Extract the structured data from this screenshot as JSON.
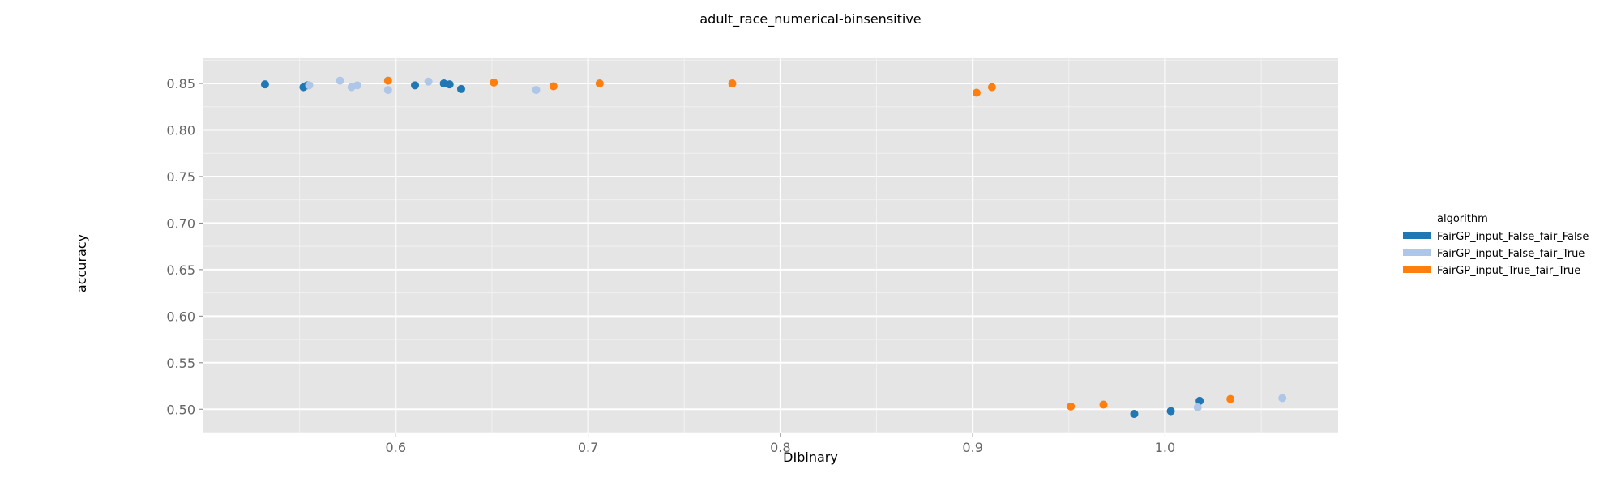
{
  "chart_data": {
    "type": "scatter",
    "title": "adult_race_numerical-binsensitive",
    "xlabel": "DIbinary",
    "ylabel": "accuracy",
    "xlim": [
      0.5,
      1.09
    ],
    "ylim": [
      0.475,
      0.877
    ],
    "x_ticks": [
      0.6,
      0.7,
      0.8,
      0.9,
      1.0
    ],
    "x_tick_labels": [
      "0.6",
      "0.7",
      "0.8",
      "0.9",
      "1.0"
    ],
    "y_ticks": [
      0.5,
      0.55,
      0.6,
      0.65,
      0.7,
      0.75,
      0.8,
      0.85
    ],
    "y_tick_labels": [
      "0.50",
      "0.55",
      "0.60",
      "0.65",
      "0.70",
      "0.75",
      "0.80",
      "0.85"
    ],
    "grid": true,
    "legend": {
      "title": "algorithm",
      "position": "right"
    },
    "series": [
      {
        "name": "FairGP_input_False_fair_False",
        "color": "#1f77b4",
        "points": [
          [
            0.532,
            0.849
          ],
          [
            0.552,
            0.846
          ],
          [
            0.554,
            0.848
          ],
          [
            0.61,
            0.848
          ],
          [
            0.625,
            0.85
          ],
          [
            0.628,
            0.849
          ],
          [
            0.634,
            0.844
          ],
          [
            0.984,
            0.495
          ],
          [
            1.003,
            0.498
          ],
          [
            1.018,
            0.509
          ]
        ]
      },
      {
        "name": "FairGP_input_False_fair_True",
        "color": "#aec7e8",
        "points": [
          [
            0.555,
            0.848
          ],
          [
            0.571,
            0.853
          ],
          [
            0.577,
            0.846
          ],
          [
            0.58,
            0.848
          ],
          [
            0.596,
            0.843
          ],
          [
            0.617,
            0.852
          ],
          [
            0.673,
            0.843
          ],
          [
            1.017,
            0.502
          ],
          [
            1.061,
            0.512
          ]
        ]
      },
      {
        "name": "FairGP_input_True_fair_True",
        "color": "#ff7f0e",
        "points": [
          [
            0.596,
            0.853
          ],
          [
            0.651,
            0.851
          ],
          [
            0.682,
            0.847
          ],
          [
            0.706,
            0.85
          ],
          [
            0.775,
            0.85
          ],
          [
            0.902,
            0.84
          ],
          [
            0.91,
            0.846
          ],
          [
            0.951,
            0.503
          ],
          [
            0.968,
            0.505
          ],
          [
            1.034,
            0.511
          ]
        ]
      }
    ]
  }
}
